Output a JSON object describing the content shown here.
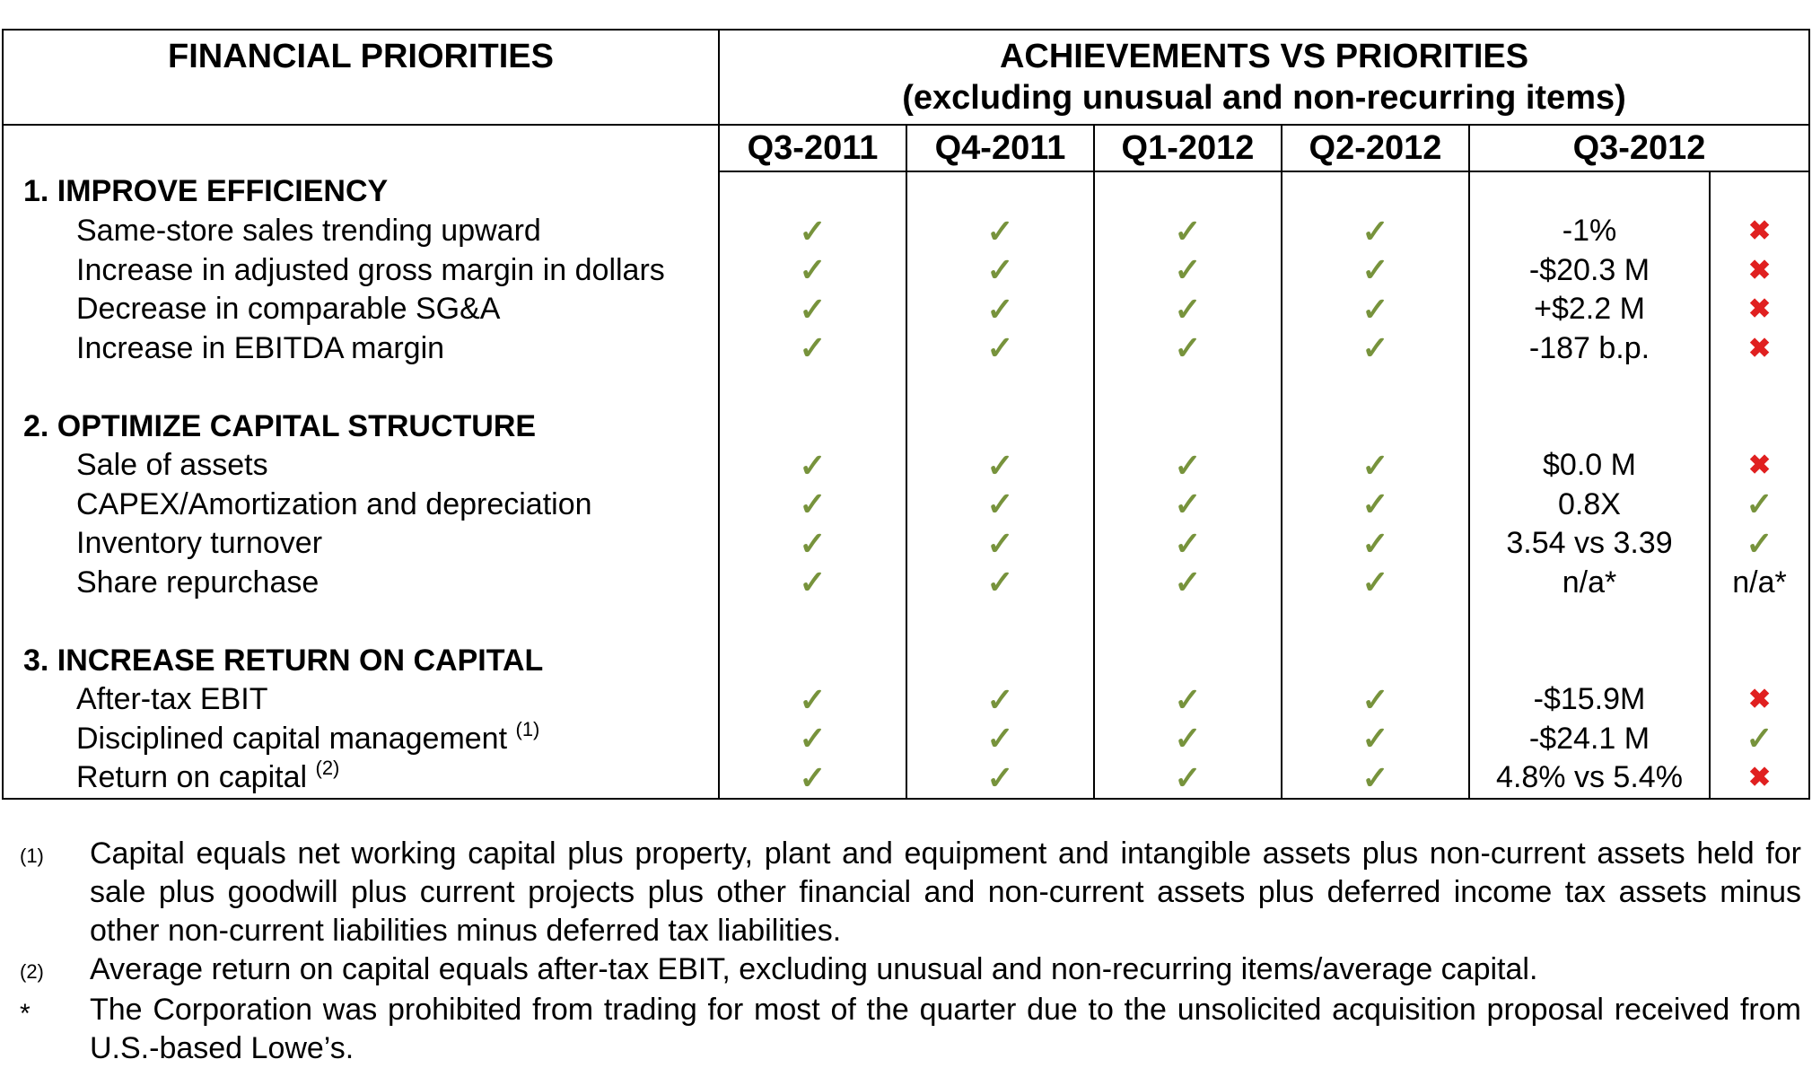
{
  "header": {
    "left_title": "FINANCIAL PRIORITIES",
    "right_title": "ACHIEVEMENTS VS PRIORITIES",
    "right_subtitle": "(excluding unusual and non-recurring items)",
    "quarters": [
      "Q3-2011",
      "Q4-2011",
      "Q1-2012",
      "Q2-2012",
      "Q3-2012"
    ]
  },
  "sections": [
    {
      "title": "1. IMPROVE EFFICIENCY",
      "rows": [
        {
          "label": "Same-store sales trending upward",
          "note": "",
          "value": "-1%",
          "status": "cross"
        },
        {
          "label": "Increase in adjusted gross margin in dollars",
          "note": "",
          "value": "-$20.3 M",
          "status": "cross"
        },
        {
          "label": "Decrease in comparable SG&A",
          "note": "",
          "value": "+$2.2 M",
          "status": "cross"
        },
        {
          "label": "Increase in EBITDA margin",
          "note": "",
          "value": "-187 b.p.",
          "status": "cross"
        }
      ]
    },
    {
      "title": "2. OPTIMIZE CAPITAL STRUCTURE",
      "rows": [
        {
          "label": "Sale of assets",
          "note": "",
          "value": "$0.0 M",
          "status": "cross"
        },
        {
          "label": "CAPEX/Amortization and depreciation",
          "note": "",
          "value": "0.8X",
          "status": "check"
        },
        {
          "label": "Inventory turnover",
          "note": "",
          "value": "3.54 vs 3.39",
          "status": "check"
        },
        {
          "label": "Share repurchase",
          "note": "",
          "value": "n/a*",
          "status": "n/a*"
        }
      ]
    },
    {
      "title": "3. INCREASE RETURN ON CAPITAL",
      "rows": [
        {
          "label": "After-tax EBIT",
          "note": "",
          "value": "-$15.9M",
          "status": "cross"
        },
        {
          "label": "Disciplined capital management",
          "note": "(1)",
          "value": "-$24.1 M",
          "status": "check"
        },
        {
          "label": "Return on capital",
          "note": "(2)",
          "value": "4.8% vs 5.4%",
          "status": "cross"
        }
      ]
    }
  ],
  "icons": {
    "check": "check-icon",
    "cross": "cross-icon",
    "check_color": "#77933c",
    "cross_color": "#e02020"
  },
  "footnotes": [
    {
      "marker": "(1)",
      "text": "Capital equals net working capital plus property, plant and equipment and intangible assets plus non-current assets held for sale plus goodwill plus current projects plus other financial and non-current assets plus deferred income tax assets minus other non-current liabilities minus deferred tax liabilities."
    },
    {
      "marker": "(2)",
      "text": "Average return on capital equals after-tax EBIT, excluding unusual and non-recurring items/average capital."
    },
    {
      "marker": "*",
      "text": "The Corporation was prohibited from trading for most of the quarter due to the unsolicited acquisition proposal received from U.S.-based Lowe’s."
    }
  ]
}
